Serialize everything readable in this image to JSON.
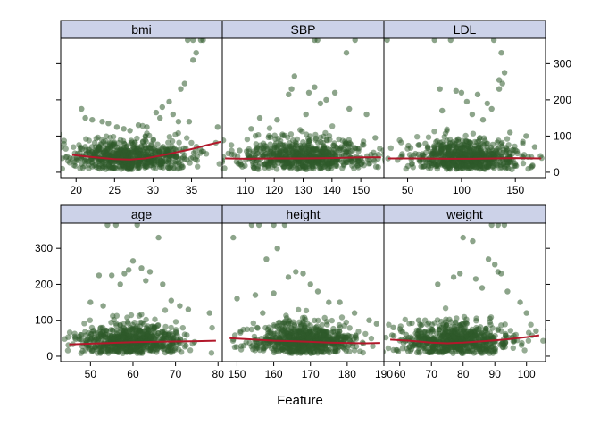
{
  "chart_data": {
    "type": "scatter",
    "xlabel": "Feature",
    "ylabel": "",
    "ylim": [
      -15,
      370
    ],
    "y_ticks": [
      0,
      100,
      200,
      300
    ],
    "layout": "3 columns x 2 rows, strip titles on top, y axis alternating left/right",
    "colors": {
      "points": "#2e5a2a",
      "smooth": "#b2182b",
      "strip": "#ccd2e8"
    },
    "panels": [
      {
        "title": "bmi",
        "xlim": [
          18,
          39
        ],
        "x_ticks": [
          20,
          25,
          30,
          35
        ],
        "smooth": [
          [
            19.5,
            48
          ],
          [
            22,
            42
          ],
          [
            25,
            36
          ],
          [
            27,
            35
          ],
          [
            29,
            38
          ],
          [
            31,
            46
          ],
          [
            33,
            55
          ],
          [
            35,
            64
          ],
          [
            37,
            75
          ],
          [
            38.8,
            84
          ]
        ],
        "center": 27,
        "spread": 4,
        "seed": 11,
        "outliers": [
          [
            34.5,
            365
          ],
          [
            35.2,
            365
          ],
          [
            36.2,
            365
          ],
          [
            36.5,
            365
          ],
          [
            35.6,
            330
          ],
          [
            35.2,
            310
          ],
          [
            34.1,
            245
          ],
          [
            33.6,
            230
          ],
          [
            32.1,
            195
          ],
          [
            31.2,
            180
          ],
          [
            30.4,
            165
          ],
          [
            32.6,
            160
          ],
          [
            30.9,
            150
          ],
          [
            33.3,
            140
          ],
          [
            20.7,
            175
          ],
          [
            21.2,
            150
          ],
          [
            22.1,
            145
          ],
          [
            23.4,
            140
          ],
          [
            24.2,
            135
          ],
          [
            25.3,
            125
          ],
          [
            28.1,
            130
          ],
          [
            29.2,
            125
          ],
          [
            38.4,
            125
          ],
          [
            27.0,
            115
          ],
          [
            26.2,
            120
          ],
          [
            34.7,
            140
          ]
        ]
      },
      {
        "title": "SBP",
        "xlim": [
          102,
          158
        ],
        "x_ticks": [
          110,
          120,
          130,
          140,
          150
        ],
        "smooth": [
          [
            103,
            38
          ],
          [
            110,
            37
          ],
          [
            120,
            38
          ],
          [
            130,
            38
          ],
          [
            140,
            39
          ],
          [
            150,
            41
          ],
          [
            157,
            41
          ]
        ],
        "center": 130,
        "spread": 11,
        "seed": 23,
        "outliers": [
          [
            134,
            365
          ],
          [
            148,
            365
          ],
          [
            135,
            365
          ],
          [
            127,
            265
          ],
          [
            126,
            230
          ],
          [
            125,
            215
          ],
          [
            132,
            220
          ],
          [
            134,
            235
          ],
          [
            131,
            160
          ],
          [
            145,
            330
          ],
          [
            141,
            220
          ],
          [
            138,
            200
          ],
          [
            136,
            190
          ],
          [
            121,
            145
          ],
          [
            146,
            175
          ],
          [
            152,
            160
          ],
          [
            155,
            95
          ],
          [
            108,
            60
          ],
          [
            115,
            150
          ],
          [
            112,
            120
          ]
        ]
      },
      {
        "title": "LDL",
        "xlim": [
          28,
          178
        ],
        "x_ticks": [
          50,
          100,
          150
        ],
        "smooth": [
          [
            32,
            38
          ],
          [
            60,
            38
          ],
          [
            90,
            37
          ],
          [
            110,
            37
          ],
          [
            130,
            38
          ],
          [
            150,
            39
          ],
          [
            174,
            38
          ]
        ],
        "center": 105,
        "spread": 25,
        "seed": 37,
        "outliers": [
          [
            31,
            365
          ],
          [
            75,
            365
          ],
          [
            90,
            365
          ],
          [
            130,
            365
          ],
          [
            137,
            330
          ],
          [
            140,
            275
          ],
          [
            135,
            255
          ],
          [
            138,
            245
          ],
          [
            135,
            230
          ],
          [
            80,
            230
          ],
          [
            95,
            225
          ],
          [
            100,
            220
          ],
          [
            115,
            215
          ],
          [
            105,
            195
          ],
          [
            124,
            190
          ],
          [
            128,
            175
          ],
          [
            110,
            160
          ],
          [
            120,
            145
          ],
          [
            82,
            170
          ],
          [
            145,
            110
          ],
          [
            160,
            100
          ],
          [
            168,
            70
          ],
          [
            60,
            75
          ],
          [
            45,
            45
          ]
        ]
      },
      {
        "title": "age",
        "xlim": [
          43,
          81
        ],
        "x_ticks": [
          50,
          60,
          70,
          80
        ],
        "smooth": [
          [
            45,
            33
          ],
          [
            50,
            35
          ],
          [
            55,
            37
          ],
          [
            60,
            39
          ],
          [
            65,
            40
          ],
          [
            70,
            41
          ],
          [
            75,
            42
          ],
          [
            79.5,
            43
          ]
        ],
        "center": 60,
        "spread": 6,
        "seed": 51,
        "outliers": [
          [
            54,
            365
          ],
          [
            56,
            365
          ],
          [
            61,
            365
          ],
          [
            66,
            330
          ],
          [
            60,
            265
          ],
          [
            62,
            245
          ],
          [
            59,
            240
          ],
          [
            64,
            235
          ],
          [
            58,
            230
          ],
          [
            55,
            225
          ],
          [
            52,
            225
          ],
          [
            63,
            210
          ],
          [
            67,
            200
          ],
          [
            57,
            200
          ],
          [
            69,
            155
          ],
          [
            73,
            130
          ],
          [
            78,
            120
          ],
          [
            71,
            140
          ],
          [
            50,
            150
          ],
          [
            53,
            140
          ]
        ]
      },
      {
        "title": "height",
        "xlim": [
          146,
          190
        ],
        "x_ticks": [
          150,
          160,
          170,
          180,
          190
        ],
        "smooth": [
          [
            148,
            50
          ],
          [
            155,
            46
          ],
          [
            160,
            43
          ],
          [
            165,
            42
          ],
          [
            170,
            40
          ],
          [
            175,
            38
          ],
          [
            180,
            37
          ],
          [
            185,
            36
          ],
          [
            189,
            37
          ]
        ],
        "center": 168,
        "spread": 7,
        "seed": 67,
        "outliers": [
          [
            149,
            330
          ],
          [
            154,
            365
          ],
          [
            156,
            365
          ],
          [
            160,
            365
          ],
          [
            163,
            365
          ],
          [
            161,
            300
          ],
          [
            158,
            270
          ],
          [
            166,
            235
          ],
          [
            168,
            230
          ],
          [
            164,
            220
          ],
          [
            170,
            200
          ],
          [
            172,
            180
          ],
          [
            160,
            175
          ],
          [
            155,
            170
          ],
          [
            150,
            160
          ],
          [
            175,
            150
          ],
          [
            178,
            150
          ],
          [
            182,
            120
          ],
          [
            186,
            100
          ],
          [
            188,
            90
          ],
          [
            157,
            120
          ]
        ]
      },
      {
        "title": "weight",
        "xlim": [
          55,
          106
        ],
        "x_ticks": [
          60,
          70,
          80,
          90,
          100
        ],
        "smooth": [
          [
            57,
            46
          ],
          [
            63,
            43
          ],
          [
            70,
            38
          ],
          [
            75,
            36
          ],
          [
            80,
            38
          ],
          [
            85,
            41
          ],
          [
            90,
            44
          ],
          [
            95,
            48
          ],
          [
            100,
            53
          ],
          [
            104,
            58
          ]
        ],
        "center": 78,
        "spread": 9,
        "seed": 83,
        "outliers": [
          [
            89,
            365
          ],
          [
            91,
            365
          ],
          [
            93,
            365
          ],
          [
            80,
            330
          ],
          [
            83,
            320
          ],
          [
            88,
            270
          ],
          [
            90,
            255
          ],
          [
            91,
            235
          ],
          [
            92,
            230
          ],
          [
            79,
            230
          ],
          [
            77,
            220
          ],
          [
            84,
            215
          ],
          [
            72,
            200
          ],
          [
            86,
            190
          ],
          [
            94,
            180
          ],
          [
            98,
            150
          ],
          [
            100,
            120
          ],
          [
            103,
            70
          ],
          [
            58,
            80
          ],
          [
            62,
            60
          ],
          [
            66,
            100
          ]
        ]
      }
    ]
  }
}
